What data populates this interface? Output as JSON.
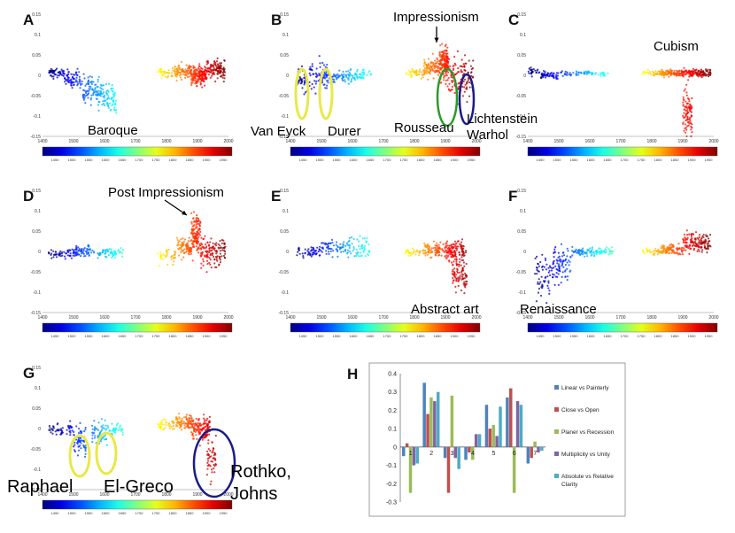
{
  "figure": {
    "panels": [
      {
        "letter": "A",
        "tag": "A",
        "labels": [
          {
            "text": "Baroque"
          }
        ]
      },
      {
        "letter": "B",
        "tag": "B",
        "labels": [
          {
            "text": "Van Eyck"
          },
          {
            "text": "Durer"
          },
          {
            "text": "Rousseau"
          },
          {
            "text": "Lichtenstein"
          },
          {
            "text": "Warhol"
          },
          {
            "text": "Impressionism"
          }
        ]
      },
      {
        "letter": "C",
        "tag": "C",
        "labels": [
          {
            "text": "Cubism"
          }
        ]
      },
      {
        "letter": "D",
        "tag": "D",
        "labels": [
          {
            "text": "Post Impressionism"
          }
        ]
      },
      {
        "letter": "E",
        "tag": "E",
        "labels": [
          {
            "text": "Abstract art"
          }
        ]
      },
      {
        "letter": "F",
        "tag": "F",
        "labels": [
          {
            "text": "Renaissance"
          }
        ]
      },
      {
        "letter": "G",
        "tag": "G",
        "labels": [
          {
            "text": "Raphael"
          },
          {
            "text": "El-Greco"
          },
          {
            "text": "Rothko,"
          },
          {
            "text": "Johns"
          }
        ]
      },
      {
        "letter": "H",
        "tag": "H",
        "labels": []
      }
    ]
  },
  "colors": {
    "blue": "#1a22c0",
    "yellow": "#e8e84a",
    "green": "#2a9a2a",
    "navy": "#1a1a8c"
  },
  "chart_data": [
    {
      "type": "scatter",
      "panels": [
        "A",
        "B",
        "C",
        "D",
        "E",
        "F",
        "G"
      ],
      "x_ticks": [
        "1400",
        "1500",
        "1600",
        "1700",
        "1800",
        "1900",
        "2000"
      ],
      "y_ticks": [
        "0.15",
        "0.1",
        "0.05",
        "0",
        "-0.05",
        "-0.1",
        "-0.15"
      ],
      "xlim": [
        1400,
        2000
      ],
      "ylim": [
        -0.15,
        0.15
      ],
      "colorbar_ticks": [
        "1450",
        "1500",
        "1550",
        "1600",
        "1650",
        "1700",
        "1750",
        "1800",
        "1850",
        "1900",
        "1950"
      ],
      "colormap": "jet"
    },
    {
      "type": "bar",
      "panel": "H",
      "categories": [
        "1",
        "2",
        "3",
        "4",
        "5",
        "6",
        "7"
      ],
      "series": [
        {
          "name": "Linear vs Painterly",
          "color": "#4f81bd",
          "values": [
            -0.05,
            0.35,
            -0.06,
            -0.07,
            0.23,
            0.27,
            -0.09
          ]
        },
        {
          "name": "Close vs Open",
          "color": "#c0504d",
          "values": [
            0.02,
            0.18,
            -0.25,
            -0.03,
            0.1,
            0.32,
            -0.06
          ]
        },
        {
          "name": "Planer vs Recession",
          "color": "#9bbb59",
          "values": [
            -0.25,
            0.27,
            0.28,
            -0.07,
            0.12,
            -0.25,
            0.03
          ]
        },
        {
          "name": "Multiplicity vs Unity",
          "color": "#8064a2",
          "values": [
            -0.1,
            0.25,
            -0.06,
            0.07,
            0.06,
            0.25,
            -0.03
          ]
        },
        {
          "name": "Absolute vs Relative Clarity",
          "color": "#4bacc6",
          "values": [
            -0.09,
            0.3,
            -0.12,
            0.07,
            0.22,
            0.23,
            -0.02
          ]
        }
      ],
      "y_ticks": [
        "0.4",
        "0.3",
        "0.2",
        "0.1",
        "0",
        "-0.1",
        "-0.2",
        "-0.3"
      ],
      "ylim": [
        -0.3,
        0.4
      ]
    }
  ]
}
